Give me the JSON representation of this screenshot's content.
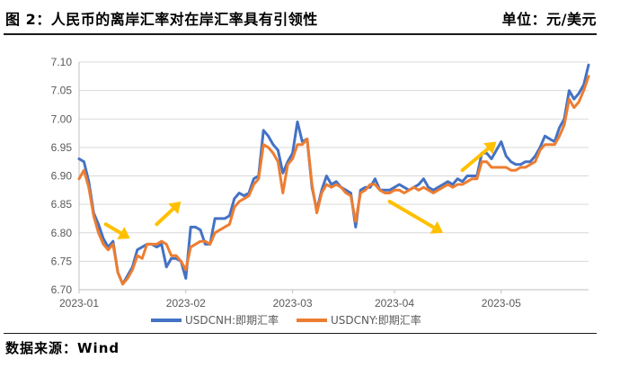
{
  "header": {
    "title": "图 2：人民币的离岸汇率对在岸汇率具有引领性",
    "unit": "单位：元/美元"
  },
  "footer": {
    "source": "数据来源：Wind"
  },
  "colors": {
    "cnh": "#4472C4",
    "cny": "#ED7D31",
    "arrow": "#FFC000",
    "grid": "#D9D9D9",
    "axis": "#BFBFBF"
  },
  "chart_data": {
    "type": "line",
    "title": "",
    "xlabel": "",
    "ylabel": "",
    "ylim": [
      6.7,
      7.1
    ],
    "yticks": [
      "6.70",
      "6.75",
      "6.80",
      "6.85",
      "6.90",
      "6.95",
      "7.00",
      "7.05",
      "7.10"
    ],
    "xticks": [
      "2023-01",
      "2023-02",
      "2023-03",
      "2023-04",
      "2023-05"
    ],
    "grid": "horizontal",
    "legend": "bottom-center",
    "x_index_range": [
      0,
      105
    ],
    "xtick_index": [
      0,
      22,
      44,
      65,
      87
    ],
    "series": [
      {
        "name": "USDCNH:即期汇率",
        "color": "#4472C4",
        "values": [
          6.93,
          6.925,
          6.89,
          6.835,
          6.815,
          6.79,
          6.775,
          6.785,
          6.73,
          6.71,
          6.725,
          6.74,
          6.77,
          6.775,
          6.78,
          6.78,
          6.775,
          6.78,
          6.74,
          6.755,
          6.755,
          6.75,
          6.72,
          6.81,
          6.81,
          6.805,
          6.78,
          6.78,
          6.825,
          6.825,
          6.825,
          6.83,
          6.86,
          6.87,
          6.865,
          6.87,
          6.895,
          6.9,
          6.98,
          6.97,
          6.955,
          6.945,
          6.905,
          6.925,
          6.94,
          6.995,
          6.96,
          6.965,
          6.88,
          6.84,
          6.875,
          6.9,
          6.885,
          6.89,
          6.88,
          6.875,
          6.87,
          6.81,
          6.875,
          6.88,
          6.88,
          6.895,
          6.875,
          6.875,
          6.875,
          6.88,
          6.885,
          6.88,
          6.875,
          6.88,
          6.885,
          6.895,
          6.88,
          6.875,
          6.88,
          6.885,
          6.89,
          6.885,
          6.895,
          6.89,
          6.9,
          6.9,
          6.9,
          6.94,
          6.94,
          6.93,
          6.945,
          6.96,
          6.935,
          6.925,
          6.92,
          6.92,
          6.925,
          6.925,
          6.935,
          6.95,
          6.97,
          6.965,
          6.96,
          6.985,
          7.0,
          7.05,
          7.035,
          7.045,
          7.06,
          7.095
        ]
      },
      {
        "name": "USDCNY:即期汇率",
        "color": "#ED7D31",
        "values": [
          6.895,
          6.91,
          6.88,
          6.83,
          6.8,
          6.78,
          6.77,
          6.78,
          6.73,
          6.71,
          6.72,
          6.735,
          6.76,
          6.755,
          6.78,
          6.78,
          6.78,
          6.785,
          6.78,
          6.76,
          6.76,
          6.75,
          6.735,
          6.775,
          6.78,
          6.785,
          6.785,
          6.78,
          6.8,
          6.805,
          6.81,
          6.815,
          6.845,
          6.855,
          6.86,
          6.865,
          6.885,
          6.895,
          6.955,
          6.95,
          6.94,
          6.925,
          6.87,
          6.92,
          6.93,
          6.955,
          6.955,
          6.965,
          6.885,
          6.835,
          6.87,
          6.885,
          6.88,
          6.885,
          6.88,
          6.87,
          6.865,
          6.82,
          6.87,
          6.875,
          6.885,
          6.885,
          6.875,
          6.87,
          6.87,
          6.875,
          6.875,
          6.87,
          6.875,
          6.88,
          6.875,
          6.88,
          6.875,
          6.87,
          6.875,
          6.88,
          6.885,
          6.88,
          6.885,
          6.885,
          6.89,
          6.895,
          6.895,
          6.925,
          6.925,
          6.915,
          6.915,
          6.915,
          6.915,
          6.91,
          6.91,
          6.915,
          6.915,
          6.92,
          6.925,
          6.945,
          6.955,
          6.955,
          6.955,
          6.97,
          6.99,
          7.035,
          7.02,
          7.03,
          7.05,
          7.075
        ]
      }
    ],
    "annotations": [
      {
        "type": "arrow",
        "from": [
          5.5,
          6.815
        ],
        "to": [
          10.5,
          6.79
        ]
      },
      {
        "type": "arrow",
        "from": [
          16,
          6.815
        ],
        "to": [
          21,
          6.855
        ]
      },
      {
        "type": "arrow",
        "from": [
          64,
          6.855
        ],
        "to": [
          75,
          6.8
        ]
      },
      {
        "type": "arrow",
        "from": [
          79,
          6.91
        ],
        "to": [
          86,
          6.96
        ]
      }
    ]
  }
}
